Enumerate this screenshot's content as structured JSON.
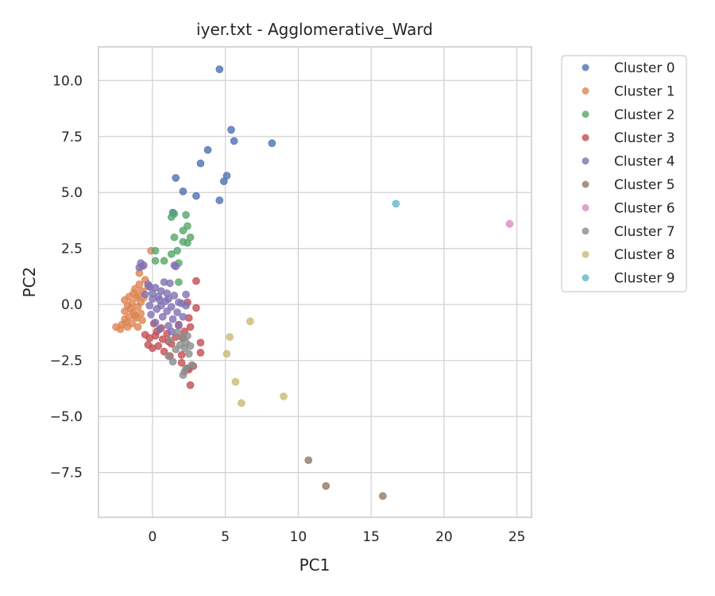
{
  "chart_data": {
    "type": "scatter",
    "title": "iyer.txt - Agglomerative_Ward",
    "xlabel": "PC1",
    "ylabel": "PC2",
    "xlim": [
      -3.7,
      26
    ],
    "ylim": [
      -9.5,
      11.5
    ],
    "xticks": [
      0,
      5,
      10,
      15,
      20,
      25
    ],
    "yticks": [
      10.0,
      7.5,
      5.0,
      2.5,
      0.0,
      -2.5,
      -5.0,
      -7.5
    ],
    "xtick_labels": [
      "0",
      "5",
      "10",
      "15",
      "20",
      "25"
    ],
    "ytick_labels": [
      "10.0",
      "7.5",
      "5.0",
      "2.5",
      "0.0",
      "−2.5",
      "−5.0",
      "−7.5"
    ],
    "grid": true,
    "legend_position": "outside top-right",
    "series": [
      {
        "name": "Cluster 0",
        "color": "#4c72b0",
        "points": [
          [
            4.6,
            10.5
          ],
          [
            5.4,
            7.8
          ],
          [
            5.6,
            7.3
          ],
          [
            8.2,
            7.2
          ],
          [
            3.8,
            6.9
          ],
          [
            3.3,
            6.3
          ],
          [
            5.1,
            5.75
          ],
          [
            1.6,
            5.65
          ],
          [
            4.9,
            5.5
          ],
          [
            2.1,
            5.05
          ],
          [
            3.0,
            4.85
          ],
          [
            4.6,
            4.65
          ],
          [
            1.4,
            4.1
          ]
        ]
      },
      {
        "name": "Cluster 1",
        "color": "#dd8452",
        "points": [
          [
            -0.1,
            2.4
          ],
          [
            -0.7,
            1.7
          ],
          [
            -0.9,
            1.4
          ],
          [
            -0.5,
            1.1
          ],
          [
            -0.9,
            0.9
          ],
          [
            -1.2,
            0.7
          ],
          [
            -0.7,
            0.6
          ],
          [
            -1.3,
            0.5
          ],
          [
            -1.6,
            0.35
          ],
          [
            -1.1,
            0.3
          ],
          [
            -1.9,
            0.2
          ],
          [
            -0.8,
            0.1
          ],
          [
            -1.4,
            0.05
          ],
          [
            -1.7,
            -0.05
          ],
          [
            -1.0,
            -0.1
          ],
          [
            -1.9,
            -0.3
          ],
          [
            -1.3,
            -0.35
          ],
          [
            -0.8,
            -0.4
          ],
          [
            -1.6,
            -0.55
          ],
          [
            -1.1,
            -0.6
          ],
          [
            -1.9,
            -0.65
          ],
          [
            -0.7,
            -0.7
          ],
          [
            -1.4,
            -0.85
          ],
          [
            -2.1,
            -0.9
          ],
          [
            -1.7,
            -1.0
          ],
          [
            -2.5,
            -1.0
          ],
          [
            -2.2,
            -1.1
          ],
          [
            -1.0,
            -1.0
          ],
          [
            -1.5,
            -0.2
          ],
          [
            -1.2,
            -0.5
          ],
          [
            -0.6,
            0.3
          ],
          [
            -1.8,
            -0.8
          ],
          [
            -0.3,
            0.8
          ],
          [
            -1.0,
            0.4
          ]
        ]
      },
      {
        "name": "Cluster 2",
        "color": "#55a868",
        "points": [
          [
            1.3,
            3.9
          ],
          [
            1.5,
            4.05
          ],
          [
            2.3,
            4.0
          ],
          [
            2.4,
            3.5
          ],
          [
            2.1,
            3.3
          ],
          [
            2.6,
            3.0
          ],
          [
            1.5,
            3.0
          ],
          [
            2.1,
            2.8
          ],
          [
            2.4,
            2.75
          ],
          [
            1.7,
            2.4
          ],
          [
            0.2,
            2.4
          ],
          [
            1.3,
            2.25
          ],
          [
            0.2,
            1.95
          ],
          [
            0.8,
            1.95
          ],
          [
            1.8,
            1.85
          ],
          [
            1.8,
            1.0
          ]
        ]
      },
      {
        "name": "Cluster 3",
        "color": "#c44e52",
        "points": [
          [
            3.0,
            1.05
          ],
          [
            2.4,
            0.1
          ],
          [
            3.0,
            -0.15
          ],
          [
            2.5,
            -0.6
          ],
          [
            2.6,
            -1.0
          ],
          [
            0.6,
            -1.05
          ],
          [
            0.3,
            -1.2
          ],
          [
            1.0,
            -1.3
          ],
          [
            0.2,
            -1.4
          ],
          [
            0.7,
            -1.55
          ],
          [
            1.6,
            -1.45
          ],
          [
            2.1,
            -1.5
          ],
          [
            3.3,
            -1.7
          ],
          [
            1.1,
            -1.65
          ],
          [
            -0.2,
            -1.5
          ],
          [
            -0.3,
            -1.8
          ],
          [
            0.4,
            -1.85
          ],
          [
            0.0,
            -1.95
          ],
          [
            1.3,
            -1.75
          ],
          [
            0.8,
            -2.1
          ],
          [
            3.3,
            -2.15
          ],
          [
            2.0,
            -2.25
          ],
          [
            1.2,
            -2.3
          ],
          [
            2.0,
            -2.6
          ],
          [
            2.8,
            -2.75
          ],
          [
            2.4,
            -2.85
          ],
          [
            2.5,
            -2.9
          ],
          [
            2.6,
            -3.6
          ],
          [
            -0.5,
            -1.35
          ],
          [
            0.1,
            -0.85
          ],
          [
            1.8,
            -0.9
          ],
          [
            2.2,
            -1.2
          ]
        ]
      },
      {
        "name": "Cluster 4",
        "color": "#8172b2",
        "points": [
          [
            -0.8,
            1.85
          ],
          [
            -0.6,
            1.75
          ],
          [
            -0.9,
            1.65
          ],
          [
            1.5,
            1.75
          ],
          [
            1.6,
            1.7
          ],
          [
            0.8,
            1.0
          ],
          [
            -0.3,
            0.9
          ],
          [
            -0.2,
            0.8
          ],
          [
            0.2,
            0.75
          ],
          [
            1.2,
            0.95
          ],
          [
            0.6,
            0.6
          ],
          [
            1.0,
            0.5
          ],
          [
            -0.5,
            0.45
          ],
          [
            0.4,
            0.35
          ],
          [
            1.5,
            0.4
          ],
          [
            2.3,
            0.45
          ],
          [
            0.0,
            0.25
          ],
          [
            0.9,
            0.15
          ],
          [
            1.8,
            0.1
          ],
          [
            -0.2,
            -0.05
          ],
          [
            0.6,
            -0.05
          ],
          [
            1.3,
            -0.1
          ],
          [
            2.0,
            0.05
          ],
          [
            2.3,
            -0.05
          ],
          [
            0.3,
            -0.2
          ],
          [
            1.0,
            -0.3
          ],
          [
            1.7,
            -0.35
          ],
          [
            -0.1,
            -0.45
          ],
          [
            0.7,
            -0.55
          ],
          [
            1.4,
            -0.65
          ],
          [
            2.1,
            -0.55
          ],
          [
            0.2,
            -0.8
          ],
          [
            1.1,
            -0.95
          ],
          [
            1.8,
            -0.95
          ],
          [
            0.5,
            -1.1
          ],
          [
            1.3,
            -1.2
          ],
          [
            0.0,
            0.5
          ],
          [
            0.5,
            0.2
          ],
          [
            1.1,
            0.25
          ]
        ]
      },
      {
        "name": "Cluster 5",
        "color": "#937860",
        "points": [
          [
            10.7,
            -6.95
          ],
          [
            11.9,
            -8.1
          ],
          [
            15.8,
            -8.55
          ]
        ]
      },
      {
        "name": "Cluster 6",
        "color": "#da8bc3",
        "points": [
          [
            24.5,
            3.6
          ]
        ]
      },
      {
        "name": "Cluster 7",
        "color": "#8c8c8c",
        "points": [
          [
            1.2,
            -1.6
          ],
          [
            1.9,
            -1.8
          ],
          [
            2.3,
            -1.7
          ],
          [
            2.4,
            -1.4
          ],
          [
            1.6,
            -2.0
          ],
          [
            2.2,
            -1.95
          ],
          [
            2.6,
            -1.85
          ],
          [
            1.1,
            -2.3
          ],
          [
            2.7,
            -2.7
          ],
          [
            2.2,
            -3.0
          ],
          [
            2.3,
            -2.85
          ],
          [
            2.1,
            -3.15
          ],
          [
            1.4,
            -2.55
          ],
          [
            2.0,
            -1.45
          ],
          [
            2.5,
            -2.2
          ],
          [
            1.7,
            -1.25
          ]
        ]
      },
      {
        "name": "Cluster 8",
        "color": "#ccb974",
        "points": [
          [
            6.7,
            -0.75
          ],
          [
            5.3,
            -1.45
          ],
          [
            5.1,
            -2.2
          ],
          [
            5.7,
            -3.45
          ],
          [
            9.0,
            -4.1
          ],
          [
            6.1,
            -4.4
          ]
        ]
      },
      {
        "name": "Cluster 9",
        "color": "#64b5cd",
        "points": [
          [
            16.7,
            4.5
          ]
        ]
      }
    ]
  }
}
